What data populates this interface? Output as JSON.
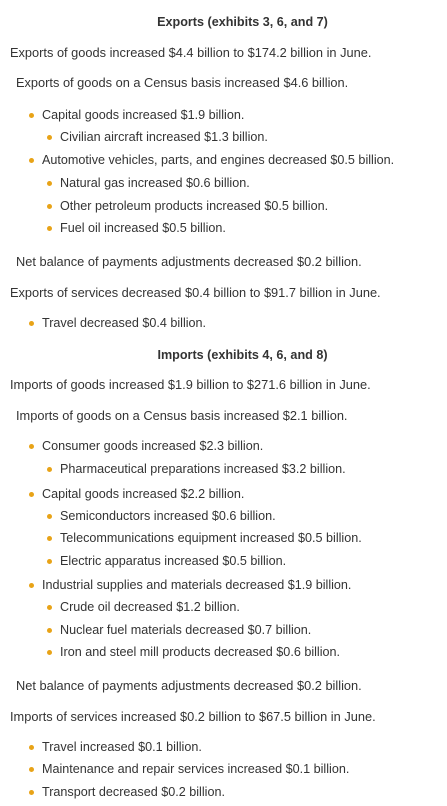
{
  "exports": {
    "heading": "Exports (exhibits 3, 6, and 7)",
    "goods_summary": "Exports of goods increased $4.4 billion to $174.2 billion in June.",
    "census_summary": "Exports of goods on a Census basis increased $4.6 billion.",
    "capital_goods": "Capital goods increased $1.9 billion.",
    "civilian_aircraft": "Civilian aircraft increased $1.3 billion.",
    "automotive": "Automotive vehicles, parts, and engines decreased $0.5 billion.",
    "natural_gas": "Natural gas increased $0.6 billion.",
    "other_petroleum": "Other petroleum products increased $0.5 billion.",
    "fuel_oil": "Fuel oil increased $0.5 billion.",
    "bop_adjustments": "Net balance of payments adjustments decreased $0.2 billion.",
    "services_summary": "Exports of services decreased $0.4 billion to $91.7 billion in June.",
    "travel": "Travel decreased $0.4 billion."
  },
  "imports": {
    "heading": "Imports (exhibits 4, 6, and 8)",
    "goods_summary": "Imports of goods increased $1.9 billion to $271.6 billion in June.",
    "census_summary": "Imports of goods on a Census basis increased $2.1 billion.",
    "consumer_goods": "Consumer goods increased $2.3 billion.",
    "pharmaceutical": "Pharmaceutical preparations increased $3.2 billion.",
    "capital_goods": "Capital goods increased $2.2 billion.",
    "semiconductors": "Semiconductors increased $0.6 billion.",
    "telecom": "Telecommunications equipment increased $0.5 billion.",
    "electric_apparatus": "Electric apparatus increased $0.5 billion.",
    "industrial_supplies": "Industrial supplies and materials decreased $1.9 billion.",
    "crude_oil": "Crude oil decreased $1.2 billion.",
    "nuclear_fuel": "Nuclear fuel materials decreased $0.7 billion.",
    "iron_steel": "Iron and steel mill products decreased $0.6 billion.",
    "bop_adjustments": "Net balance of payments adjustments decreased $0.2 billion.",
    "services_summary": "Imports of services increased $0.2 billion to $67.5 billion in June.",
    "travel": "Travel increased $0.1 billion.",
    "maintenance": "Maintenance and repair services increased $0.1 billion.",
    "transport": "Transport decreased $0.2 billion."
  },
  "colors": {
    "bullet": "#e8a317",
    "text": "#333333"
  }
}
